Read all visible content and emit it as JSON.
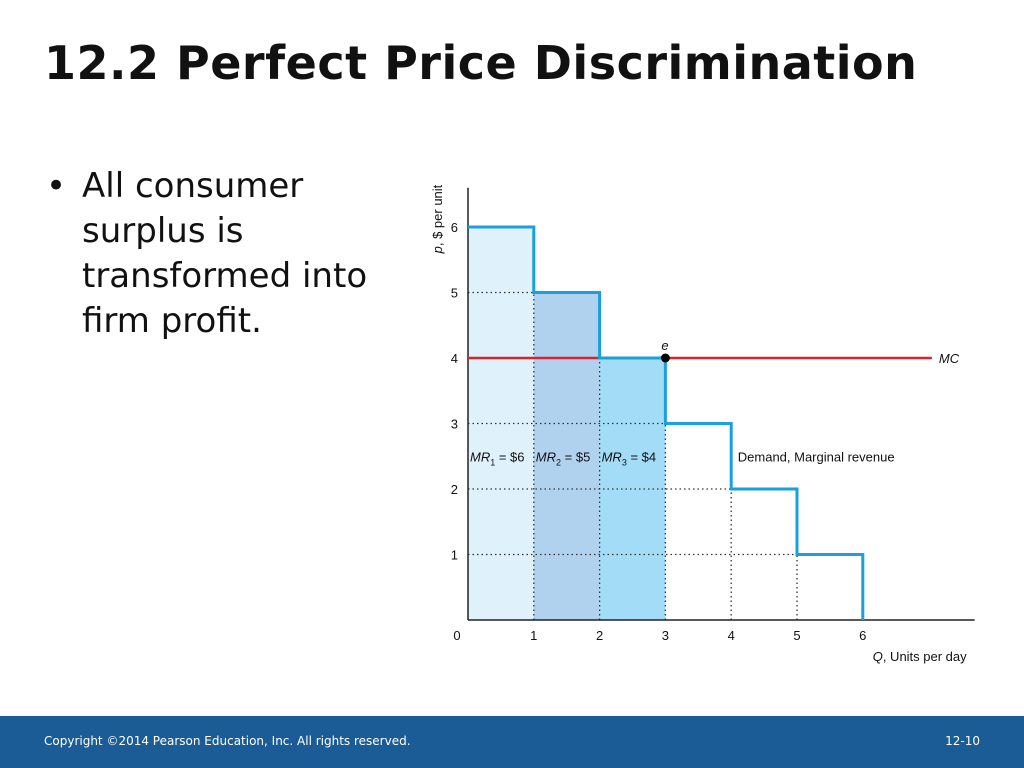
{
  "slide": {
    "title": "12.2  Perfect Price Discrimination",
    "bullets": [
      "All consumer surplus is transformed into firm profit."
    ],
    "bullet_symbol": "•"
  },
  "footer": {
    "copyright": "Copyright ©2014 Pearson Education, Inc. All rights reserved.",
    "page": "12-10"
  },
  "colors": {
    "demand": "#1aa0dc",
    "mc": "#d8232a",
    "fill_1": "#dff1fb",
    "fill_2": "#b0d2ef",
    "fill_3": "#a3dcf6",
    "grid": "#333333",
    "footer": "#1b5c96"
  },
  "chart_data": {
    "type": "line",
    "ylabel": "p, $ per unit",
    "xlabel": "Q, Units per day",
    "x_ticks": [
      0,
      1,
      2,
      3,
      4,
      5,
      6
    ],
    "y_ticks": [
      1,
      2,
      3,
      4,
      5,
      6
    ],
    "xlim": [
      0,
      7.7
    ],
    "ylim": [
      0,
      6.6
    ],
    "demand_steps": [
      {
        "from": 0,
        "to": 1,
        "p": 6
      },
      {
        "from": 1,
        "to": 2,
        "p": 5
      },
      {
        "from": 2,
        "to": 3,
        "p": 4
      },
      {
        "from": 3,
        "to": 4,
        "p": 3
      },
      {
        "from": 4,
        "to": 5,
        "p": 2
      },
      {
        "from": 5,
        "to": 6,
        "p": 1
      }
    ],
    "demand_label": "Demand, Marginal revenue",
    "mc": {
      "value": 4,
      "label": "MC"
    },
    "point": {
      "x": 3,
      "y": 4,
      "label": "e"
    },
    "shaded_units": [
      {
        "from": 0,
        "to": 1,
        "height": 6,
        "label_parts": [
          "MR",
          "1",
          " = $6"
        ],
        "fill": "fill_1"
      },
      {
        "from": 1,
        "to": 2,
        "height": 5,
        "label_parts": [
          "MR",
          "2",
          " = $5"
        ],
        "fill": "fill_2"
      },
      {
        "from": 2,
        "to": 3,
        "height": 4,
        "label_parts": [
          "MR",
          "3",
          " = $4"
        ],
        "fill": "fill_3"
      }
    ]
  }
}
